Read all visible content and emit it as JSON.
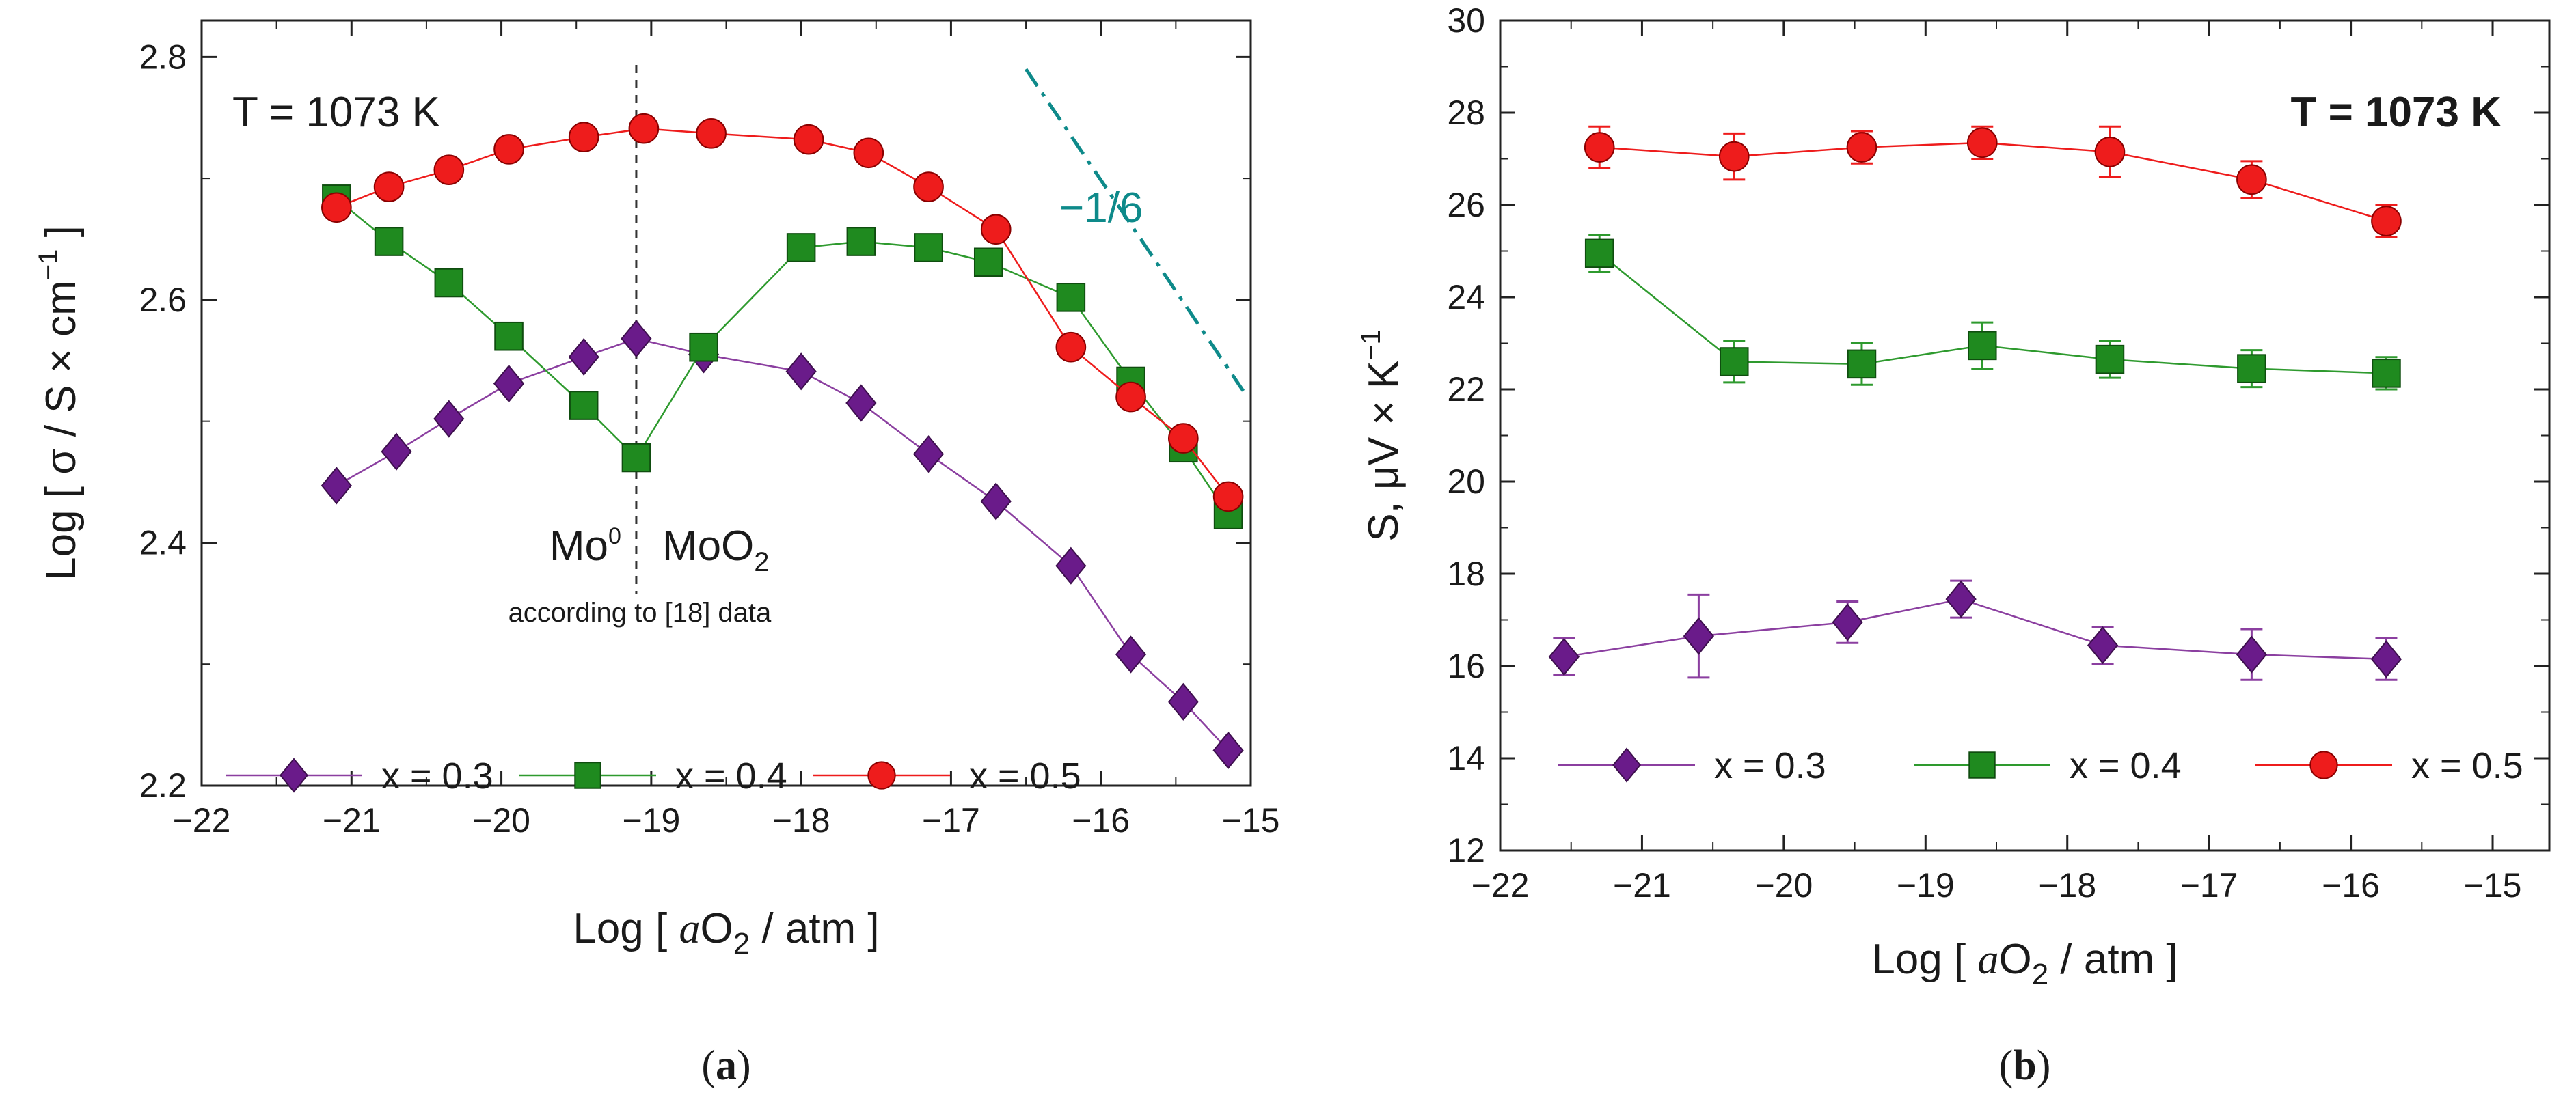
{
  "chart_data": [
    {
      "id": "a",
      "type": "line",
      "panel_label": "a",
      "title": "",
      "annotation_temp": "T = 1073 K",
      "xlabel": {
        "prefix": "Log [ ",
        "var": "a",
        "sym": "O",
        "sub": "2",
        "suffix": " / atm ]"
      },
      "ylabel": {
        "prefix": "Log [ σ / S × cm",
        "sup": "−1",
        "suffix": " ]"
      },
      "xlim": [
        -22,
        -15
      ],
      "ylim": [
        2.2,
        2.83
      ],
      "xticks": [
        -22,
        -21,
        -20,
        -19,
        -18,
        -17,
        -16,
        -15
      ],
      "xtick_labels": [
        "−22",
        "−21",
        "−20",
        "−19",
        "−18",
        "−17",
        "−16",
        "−15"
      ],
      "yticks": [
        2.2,
        2.4,
        2.6,
        2.8
      ],
      "ytick_labels": [
        "2.2",
        "2.4",
        "2.6",
        "2.8"
      ],
      "series": [
        {
          "name": "x = 0.3",
          "color": "#8b3fa0",
          "fill": "#6a1b8a",
          "marker": "diamond",
          "x": [
            -21.1,
            -20.7,
            -20.35,
            -19.95,
            -19.45,
            -19.1,
            -18.65,
            -18.0,
            -17.6,
            -17.15,
            -16.7,
            -16.2,
            -15.8,
            -15.45,
            -15.15
          ],
          "y": [
            2.447,
            2.475,
            2.502,
            2.531,
            2.553,
            2.568,
            2.555,
            2.541,
            2.515,
            2.473,
            2.434,
            2.381,
            2.308,
            2.269,
            2.229
          ]
        },
        {
          "name": "x = 0.4",
          "color": "#2e9a2e",
          "fill": "#1f8a1f",
          "marker": "square",
          "x": [
            -21.1,
            -20.75,
            -20.35,
            -19.95,
            -19.45,
            -19.1,
            -18.65,
            -18.0,
            -17.6,
            -17.15,
            -16.75,
            -16.2,
            -15.8,
            -15.45,
            -15.15
          ],
          "y": [
            2.683,
            2.648,
            2.614,
            2.57,
            2.513,
            2.47,
            2.561,
            2.643,
            2.648,
            2.643,
            2.631,
            2.602,
            2.533,
            2.478,
            2.423
          ]
        },
        {
          "name": "x = 0.5",
          "color": "#ee1c1c",
          "fill": "#ee1c1c",
          "marker": "circle",
          "x": [
            -21.1,
            -20.75,
            -20.35,
            -19.95,
            -19.45,
            -19.05,
            -18.6,
            -17.95,
            -17.55,
            -17.15,
            -16.7,
            -16.2,
            -15.8,
            -15.45,
            -15.15
          ],
          "y": [
            2.676,
            2.693,
            2.707,
            2.724,
            2.734,
            2.741,
            2.737,
            2.732,
            2.721,
            2.693,
            2.658,
            2.561,
            2.52,
            2.486,
            2.438
          ]
        }
      ],
      "vline": {
        "x": -19.1,
        "label_left": "Mo",
        "label_left_sup": "0",
        "label_right": "MoO",
        "label_right_sub": "2",
        "caption": "according to [18] data"
      },
      "slope": {
        "label": "−1/6",
        "color": "#0e8a8a",
        "x": [
          -16.5,
          -15.05
        ],
        "y": [
          2.79,
          2.525
        ]
      }
    },
    {
      "id": "b",
      "type": "line",
      "panel_label": "b",
      "title": "",
      "annotation_temp": "T = 1073 K",
      "xlabel": {
        "prefix": "Log [ ",
        "var": "a",
        "sym": "O",
        "sub": "2",
        "suffix": " / atm ]"
      },
      "ylabel": {
        "prefix": "S, μV × K",
        "sup": "−1",
        "suffix": ""
      },
      "xlim": [
        -22,
        -14.6
      ],
      "ylim": [
        12,
        30
      ],
      "xticks": [
        -22,
        -21,
        -20,
        -19,
        -18,
        -17,
        -16,
        -15
      ],
      "xtick_labels": [
        "−22",
        "−21",
        "−20",
        "−19",
        "−18",
        "−17",
        "−16",
        "−15"
      ],
      "yticks": [
        12,
        14,
        16,
        18,
        20,
        22,
        24,
        26,
        28,
        30
      ],
      "ytick_labels": [
        "12",
        "14",
        "16",
        "18",
        "20",
        "22",
        "24",
        "26",
        "28",
        "30"
      ],
      "series": [
        {
          "name": "x = 0.3",
          "color": "#8b3fa0",
          "fill": "#6a1b8a",
          "marker": "diamond",
          "x": [
            -21.55,
            -20.6,
            -19.55,
            -18.75,
            -17.75,
            -16.7,
            -15.75
          ],
          "y": [
            16.2,
            16.65,
            16.95,
            17.45,
            16.45,
            16.25,
            16.15
          ],
          "err": [
            0.4,
            0.9,
            0.45,
            0.4,
            0.4,
            0.55,
            0.45
          ]
        },
        {
          "name": "x = 0.4",
          "color": "#2e9a2e",
          "fill": "#1f8a1f",
          "marker": "square",
          "x": [
            -21.3,
            -20.35,
            -19.45,
            -18.6,
            -17.7,
            -16.7,
            -15.75
          ],
          "y": [
            24.95,
            22.6,
            22.55,
            22.95,
            22.65,
            22.45,
            22.35
          ],
          "err": [
            0.4,
            0.45,
            0.45,
            0.5,
            0.4,
            0.4,
            0.35
          ]
        },
        {
          "name": "x = 0.5",
          "color": "#ee1c1c",
          "fill": "#ee1c1c",
          "marker": "circle",
          "x": [
            -21.3,
            -20.35,
            -19.45,
            -18.6,
            -17.7,
            -16.7,
            -15.75
          ],
          "y": [
            27.25,
            27.05,
            27.25,
            27.35,
            27.15,
            26.55,
            25.65
          ],
          "err": [
            0.45,
            0.5,
            0.35,
            0.35,
            0.55,
            0.4,
            0.35
          ]
        }
      ]
    }
  ]
}
